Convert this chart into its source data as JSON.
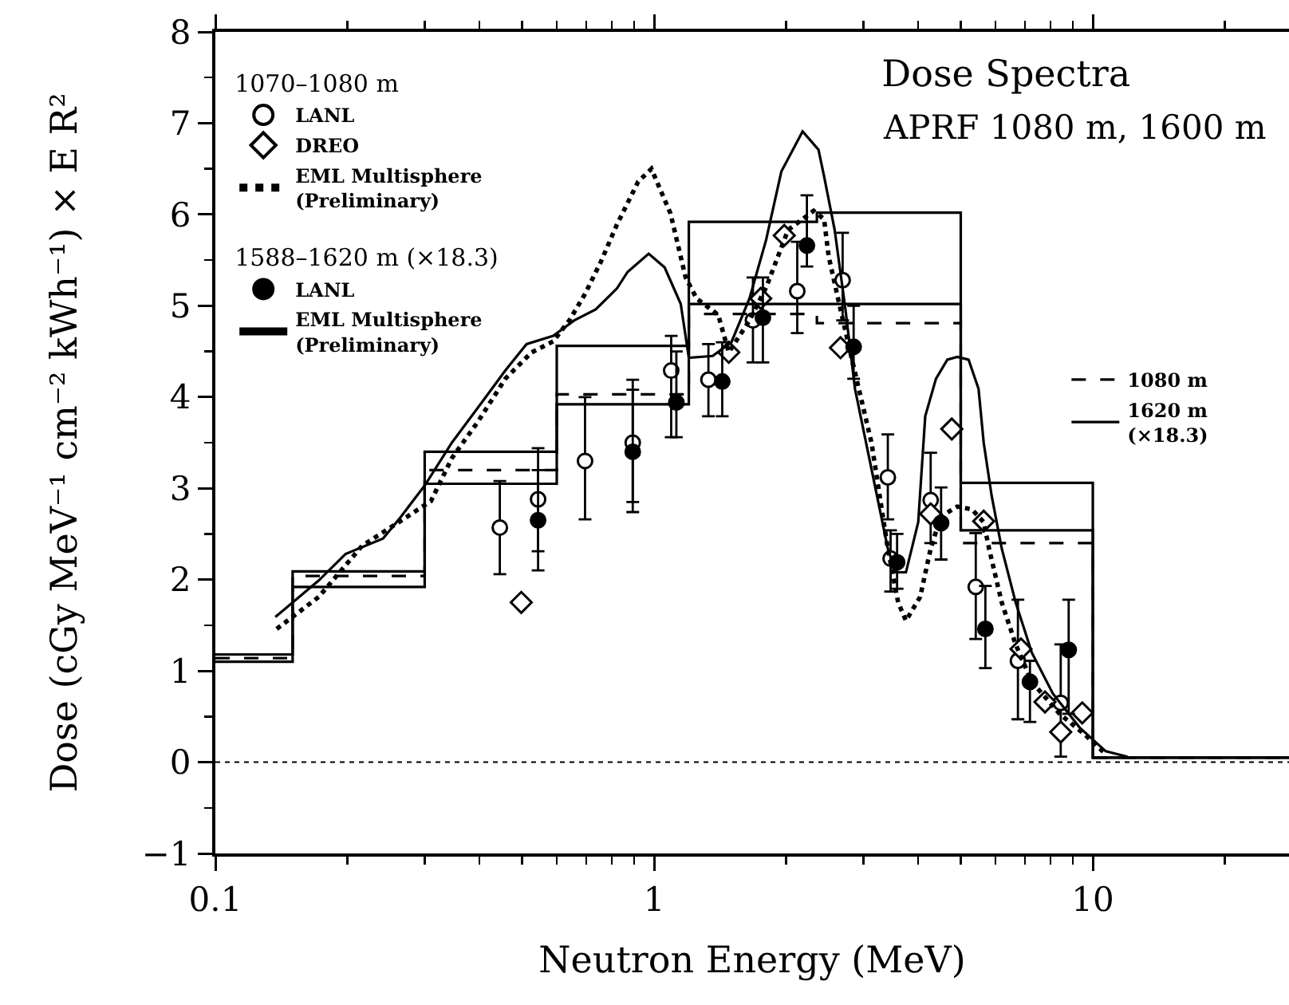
{
  "chart_data": {
    "type": "scatter",
    "title": "Dose Spectra",
    "subtitle": "APRF 1080 m, 1600 m",
    "xlabel": "Neutron Energy (MeV)",
    "ylabel": "Dose (cGy MeV⁻¹ cm⁻² kWh⁻¹) × E R²",
    "annotations": [
      "1070–1080 m",
      "1588–1620 m (×18.3)"
    ],
    "log": "x",
    "legend": "top left",
    "xlim": [
      0.1,
      28
    ],
    "xticks": [
      0.1,
      {
        "value": 0.2,
        "label": null
      },
      {
        "value": 0.3,
        "label": null
      },
      {
        "value": 0.4,
        "label": null
      },
      {
        "value": 0.5,
        "label": null
      },
      {
        "value": 0.6,
        "label": null
      },
      {
        "value": 0.7,
        "label": null
      },
      {
        "value": 0.8,
        "label": null
      },
      {
        "value": 0.9,
        "label": null
      },
      1,
      {
        "value": 2,
        "label": null
      },
      {
        "value": 3,
        "label": null
      },
      {
        "value": 4,
        "label": null
      },
      {
        "value": 5,
        "label": null
      },
      {
        "value": 6,
        "label": null
      },
      {
        "value": 7,
        "label": null
      },
      {
        "value": 8,
        "label": null
      },
      {
        "value": 9,
        "label": null
      },
      10,
      {
        "value": 20,
        "label": null
      }
    ],
    "ylim": [
      -1,
      8
    ],
    "yticks": [
      {
        "value": -1,
        "label": "−1"
      },
      {
        "value": -0.5,
        "label": null
      },
      0,
      {
        "value": 0.5,
        "label": null
      },
      1,
      {
        "value": 1.5,
        "label": null
      },
      2,
      {
        "value": 2.5,
        "label": null
      },
      3,
      {
        "value": 3.5,
        "label": null
      },
      4,
      {
        "value": 4.5,
        "label": null
      },
      5,
      {
        "value": 5.5,
        "label": null
      },
      6,
      {
        "value": 6.5,
        "label": null
      },
      7,
      {
        "value": 7.5,
        "label": null
      },
      8
    ],
    "ref_lines": [
      {
        "axis": "y",
        "value": 0,
        "line_style": "dotted"
      }
    ],
    "series": [
      {
        "name": "LANL",
        "marker": "circle-open",
        "color": "#000000",
        "x": [
          0.445,
          0.544,
          0.696,
          0.894,
          1.094,
          1.33,
          1.68,
          2.12,
          2.69,
          3.41,
          3.46,
          4.27,
          5.41,
          6.75,
          8.45
        ],
        "values": [
          2.57,
          2.88,
          3.3,
          3.5,
          4.29,
          4.19,
          4.84,
          5.16,
          5.28,
          3.12,
          2.23,
          2.87,
          1.92,
          1.11,
          0.65
        ],
        "errors": [
          [
            2.06,
            3.08
          ],
          [
            2.31,
            3.44
          ],
          [
            2.66,
            4.0
          ],
          [
            2.85,
            4.19
          ],
          [
            3.56,
            4.67
          ],
          [
            3.79,
            4.58
          ],
          [
            4.38,
            5.31
          ],
          [
            4.7,
            5.7
          ],
          [
            4.84,
            5.8
          ],
          [
            2.66,
            3.59
          ],
          [
            1.87,
            2.54
          ],
          [
            2.4,
            3.39
          ],
          [
            1.35,
            2.51
          ],
          [
            0.47,
            1.78
          ],
          [
            0.06,
            1.29
          ]
        ]
      },
      {
        "name": "DREO",
        "marker": "diamond-open",
        "color": "#000000",
        "x": [
          0.498,
          1.48,
          1.75,
          1.98,
          2.66,
          4.27,
          4.77,
          5.64,
          6.86,
          7.78,
          8.45,
          9.46
        ],
        "values": [
          1.75,
          4.49,
          5.08,
          5.77,
          4.54,
          2.72,
          3.65,
          2.64,
          1.24,
          0.66,
          0.33,
          0.54
        ]
      },
      {
        "name": "EML Multisphere\n(Preliminary)",
        "type": "line",
        "line_style": "dotted",
        "color": "#000000",
        "x": [
          0.138,
          0.172,
          0.216,
          0.262,
          0.31,
          0.346,
          0.398,
          0.458,
          0.526,
          0.589,
          0.641,
          0.696,
          0.756,
          0.823,
          0.92,
          0.986,
          1.09,
          1.18,
          1.25,
          1.4,
          1.48,
          1.65,
          1.8,
          2.02,
          2.31,
          2.44,
          2.5,
          2.66,
          2.8,
          3.13,
          3.41,
          3.6,
          3.75,
          4.04,
          4.27,
          4.5,
          4.91,
          5.3,
          5.64,
          5.8,
          6.2,
          6.67,
          7.26,
          8.4,
          9.6,
          10.7
        ],
        "values": [
          1.46,
          1.81,
          2.37,
          2.63,
          2.86,
          3.33,
          3.74,
          4.2,
          4.49,
          4.61,
          4.84,
          5.13,
          5.48,
          5.89,
          6.36,
          6.5,
          6.01,
          5.31,
          5.08,
          4.9,
          4.49,
          4.84,
          5.2,
          5.83,
          6.04,
          5.95,
          5.54,
          4.96,
          4.49,
          3.5,
          2.34,
          1.75,
          1.55,
          1.81,
          2.34,
          2.69,
          2.8,
          2.77,
          2.63,
          2.34,
          1.75,
          1.29,
          0.88,
          0.53,
          0.3,
          0.09
        ]
      },
      {
        "name": "LANL",
        "marker": "circle",
        "color": "#000000",
        "x": [
          0.544,
          0.894,
          1.124,
          1.43,
          1.77,
          2.23,
          2.85,
          3.58,
          4.51,
          5.69,
          7.19,
          8.81
        ],
        "values": [
          2.65,
          3.4,
          3.94,
          4.17,
          4.87,
          5.66,
          4.55,
          2.19,
          2.62,
          1.46,
          0.88,
          1.23
        ],
        "errors": [
          [
            2.1,
            3.2
          ],
          [
            2.74,
            4.08
          ],
          [
            3.56,
            4.5
          ],
          [
            3.79,
            4.6
          ],
          [
            4.38,
            5.31
          ],
          [
            5.43,
            6.21
          ],
          [
            4.2,
            5.0
          ],
          [
            1.9,
            2.5
          ],
          [
            2.22,
            3.01
          ],
          [
            1.03,
            1.93
          ],
          [
            0.44,
            1.11
          ],
          [
            0.53,
            1.78
          ]
        ]
      },
      {
        "name": "EML Multisphere\n(Preliminary)",
        "type": "line",
        "line_style": "solid",
        "color": "#000000",
        "x": [
          0.137,
          0.172,
          0.198,
          0.241,
          0.262,
          0.301,
          0.346,
          0.409,
          0.458,
          0.512,
          0.589,
          0.658,
          0.736,
          0.823,
          0.87,
          0.972,
          1.057,
          1.15,
          1.2,
          1.36,
          1.5,
          1.65,
          1.8,
          1.95,
          2.18,
          2.37,
          2.44,
          2.58,
          2.73,
          2.87,
          3.13,
          3.41,
          3.55,
          3.75,
          4.0,
          4.15,
          4.39,
          4.66,
          4.91,
          5.21,
          5.49,
          5.64,
          5.88,
          6.2,
          6.67,
          7.26,
          8.11,
          9.33,
          10.7,
          12
        ],
        "values": [
          1.59,
          1.99,
          2.28,
          2.45,
          2.66,
          3.04,
          3.5,
          3.97,
          4.29,
          4.58,
          4.67,
          4.84,
          4.96,
          5.19,
          5.37,
          5.57,
          5.42,
          5.02,
          4.43,
          4.45,
          4.6,
          5.08,
          5.72,
          6.47,
          6.91,
          6.71,
          6.42,
          5.83,
          4.96,
          4.09,
          3.21,
          2.34,
          2.08,
          2.08,
          2.63,
          3.79,
          4.2,
          4.41,
          4.44,
          4.41,
          4.09,
          3.5,
          2.92,
          2.34,
          1.75,
          1.2,
          0.75,
          0.38,
          0.12,
          0.06
        ]
      },
      {
        "name": "1080 m",
        "type": "step",
        "line_style": "dashed",
        "color": "#000000",
        "x": [
          0.1,
          0.15,
          0.3,
          0.6,
          1.2,
          2.35,
          5,
          10,
          28
        ],
        "values": [
          1.14,
          2.04,
          3.2,
          4.03,
          4.91,
          4.81,
          2.4,
          0.05,
          0.05
        ]
      },
      {
        "name": "1620 m\n(×18.3)",
        "type": "step",
        "line_style": "solid",
        "color": "#000000",
        "x": [
          0.1,
          0.15,
          0.3,
          0.6,
          1.2,
          2.35,
          5,
          10,
          28
        ],
        "values": [
          1.18,
          2.09,
          3.4,
          4.56,
          5.92,
          6.02,
          3.06,
          0.05,
          0.05
        ]
      },
      {
        "type": "step",
        "line_style": "solid",
        "color": "#000000",
        "x": [
          0.1,
          0.15,
          0.3,
          0.6,
          1.2,
          2.35,
          5,
          10,
          28
        ],
        "values": [
          1.1,
          1.92,
          3.05,
          3.92,
          5.02,
          5.02,
          2.54,
          0.05,
          0.05
        ]
      }
    ]
  }
}
